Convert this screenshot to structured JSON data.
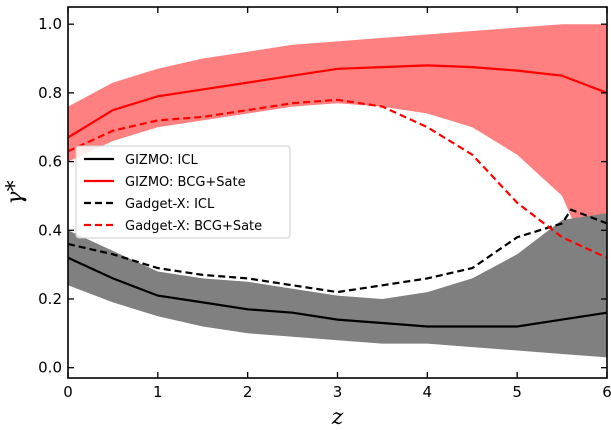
{
  "chart_data": {
    "type": "line",
    "xlabel": "z",
    "ylabel": "γ*",
    "xlim": [
      0,
      6
    ],
    "ylim": [
      -0.03,
      1.05
    ],
    "xticks": [
      0,
      1,
      2,
      3,
      4,
      5,
      6
    ],
    "yticks": [
      0.0,
      0.2,
      0.4,
      0.6,
      0.8,
      1.0
    ],
    "xtick_labels": [
      "0",
      "1",
      "2",
      "3",
      "4",
      "5",
      "6"
    ],
    "ytick_labels": [
      "0.0",
      "0.2",
      "0.4",
      "0.6",
      "0.8",
      "1.0"
    ],
    "grid": false,
    "legend_position": "center-left",
    "series": [
      {
        "name": "GIZMO: ICL",
        "style": "solid",
        "color": "#000000",
        "x": [
          0,
          0.5,
          1,
          1.5,
          2,
          2.5,
          3,
          3.5,
          4,
          4.5,
          5,
          5.5,
          6
        ],
        "y": [
          0.32,
          0.26,
          0.21,
          0.19,
          0.17,
          0.16,
          0.14,
          0.13,
          0.12,
          0.12,
          0.12,
          0.14,
          0.16
        ]
      },
      {
        "name": "GIZMO: BCG+Sate",
        "style": "solid",
        "color": "#ff0000",
        "x": [
          0,
          0.5,
          1,
          1.5,
          2,
          2.5,
          3,
          3.5,
          4,
          4.5,
          5,
          5.5,
          6
        ],
        "y": [
          0.67,
          0.75,
          0.79,
          0.81,
          0.83,
          0.85,
          0.87,
          0.875,
          0.88,
          0.875,
          0.865,
          0.85,
          0.8
        ]
      },
      {
        "name": "Gadget-X: ICL",
        "style": "dashed",
        "color": "#000000",
        "x": [
          0,
          0.5,
          1,
          1.5,
          2,
          2.5,
          3,
          3.5,
          4,
          4.5,
          5,
          5.5,
          5.6,
          6
        ],
        "y": [
          0.36,
          0.33,
          0.29,
          0.27,
          0.26,
          0.24,
          0.22,
          0.24,
          0.26,
          0.29,
          0.38,
          0.42,
          0.46,
          0.42
        ]
      },
      {
        "name": "Gadget-X: BCG+Sate",
        "style": "dashed",
        "color": "#ff0000",
        "x": [
          0,
          0.5,
          1,
          1.5,
          2,
          2.5,
          3,
          3.5,
          4,
          4.5,
          5,
          5.5,
          6
        ],
        "y": [
          0.63,
          0.69,
          0.72,
          0.73,
          0.75,
          0.77,
          0.78,
          0.76,
          0.7,
          0.62,
          0.48,
          0.38,
          0.32
        ]
      }
    ],
    "bands": [
      {
        "color": "#ff8080",
        "x": [
          0,
          0.5,
          1,
          1.5,
          2,
          2.5,
          3,
          3.5,
          4,
          4.5,
          5,
          5.5,
          6
        ],
        "y_low": [
          0.6,
          0.66,
          0.7,
          0.72,
          0.74,
          0.76,
          0.77,
          0.76,
          0.74,
          0.7,
          0.62,
          0.5,
          0.2
        ],
        "y_high": [
          0.76,
          0.83,
          0.87,
          0.9,
          0.92,
          0.94,
          0.95,
          0.96,
          0.97,
          0.98,
          0.99,
          1.0,
          1.0
        ]
      },
      {
        "color": "#808080",
        "x": [
          0,
          0.5,
          1,
          1.5,
          2,
          2.5,
          3,
          3.5,
          4,
          4.5,
          5,
          5.5,
          6
        ],
        "y_low": [
          0.24,
          0.19,
          0.15,
          0.12,
          0.1,
          0.09,
          0.08,
          0.07,
          0.07,
          0.06,
          0.05,
          0.04,
          0.03
        ],
        "y_high": [
          0.4,
          0.34,
          0.28,
          0.26,
          0.25,
          0.23,
          0.21,
          0.2,
          0.22,
          0.26,
          0.33,
          0.43,
          0.45
        ]
      }
    ]
  }
}
